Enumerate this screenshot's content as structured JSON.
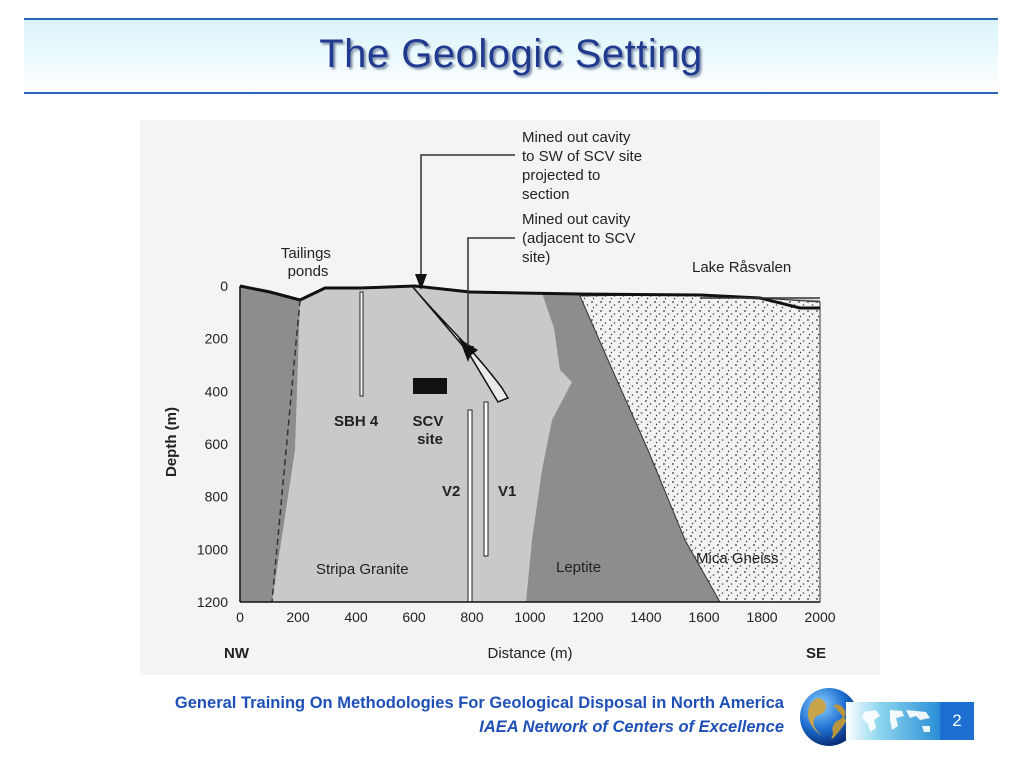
{
  "title": "The Geologic Setting",
  "figure": {
    "annotations": {
      "cavity_sw": [
        "Mined out cavity",
        "to SW of SCV site",
        "projected to",
        "section"
      ],
      "cavity_adjacent": [
        "Mined out cavity",
        "(adjacent to SCV",
        "site)"
      ],
      "tailings": [
        "Tailings",
        "ponds"
      ],
      "lake": "Lake Råsvalen"
    },
    "labels": {
      "sbh4": "SBH 4",
      "scv": [
        "SCV",
        "site"
      ],
      "v2": "V2",
      "v1": "V1",
      "granite": "Stripa Granite",
      "leptite": "Leptite",
      "gneiss": "Mica Gneiss"
    },
    "y_axis": {
      "label": "Depth (m)",
      "ticks": [
        "0",
        "200",
        "400",
        "600",
        "800",
        "1000",
        "1200"
      ]
    },
    "x_axis": {
      "label": "Distance (m)",
      "ticks": [
        "0",
        "200",
        "400",
        "600",
        "800",
        "1000",
        "1200",
        "1400",
        "1600",
        "1800",
        "2000"
      ]
    },
    "direction_left": "NW",
    "direction_right": "SE"
  },
  "footer": {
    "line1": "General Training On Methodologies For Geological Disposal in North America",
    "line2": "IAEA Network of Centers of Excellence",
    "page_number": "2"
  },
  "colors": {
    "title": "#1f3a8f",
    "header_rule": "#2a66b8",
    "footer_text": "#1f50b8",
    "granite": "#c9c9c9",
    "country_rock": "#8d8d8d",
    "page_box": "#1d6fd1"
  }
}
